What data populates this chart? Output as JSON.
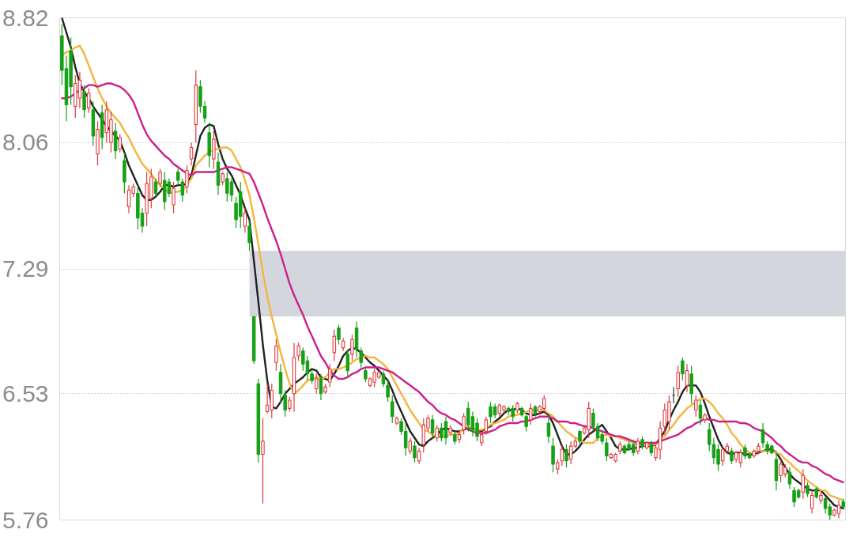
{
  "chart_data": {
    "type": "candlestick",
    "categories": [
      null,
      null,
      null,
      null,
      null,
      null,
      null,
      null,
      null,
      null,
      null,
      null,
      null,
      null,
      null,
      null,
      null,
      null,
      null,
      null,
      null,
      null,
      null,
      null,
      null,
      null,
      null,
      null,
      null,
      null,
      null,
      null,
      null,
      null,
      null,
      null,
      null,
      null,
      null,
      null,
      null,
      null,
      null,
      null,
      null,
      null,
      null,
      null,
      null,
      null,
      null,
      null,
      null,
      null,
      null,
      null,
      null,
      null,
      null,
      null,
      null,
      null,
      null,
      null,
      null,
      null,
      null,
      null,
      null,
      null,
      null,
      null,
      null,
      null,
      null,
      null,
      null,
      null,
      null,
      null,
      null,
      null,
      null,
      null,
      null,
      null,
      null,
      null,
      null,
      null,
      null,
      null,
      null,
      null,
      null,
      null,
      null,
      null,
      null,
      null,
      null,
      null,
      null,
      null,
      null,
      null,
      null,
      null,
      null,
      null,
      null,
      null,
      null,
      null,
      null,
      null,
      null,
      null,
      null,
      null,
      null,
      null,
      null,
      null,
      null,
      null,
      null,
      null,
      null,
      null,
      null,
      null,
      null,
      null,
      null,
      null,
      null,
      null,
      null,
      null,
      null,
      null,
      null,
      null,
      null,
      null,
      null,
      null,
      null,
      null,
      null,
      null,
      null,
      null,
      null,
      null,
      null,
      null,
      null,
      null,
      null,
      null,
      null,
      null,
      null,
      null,
      null,
      null,
      null,
      null,
      null,
      null,
      null,
      null,
      null,
      null
    ],
    "ohlc": [
      [
        8.71,
        8.78,
        8.41,
        8.5
      ],
      [
        8.51,
        8.59,
        8.19,
        8.29
      ],
      [
        8.62,
        8.7,
        8.29,
        8.4
      ],
      [
        8.28,
        8.47,
        8.21,
        8.42
      ],
      [
        8.33,
        8.49,
        8.27,
        8.44
      ],
      [
        8.37,
        8.41,
        8.21,
        8.26
      ],
      [
        8.27,
        8.39,
        8.24,
        8.36
      ],
      [
        8.26,
        8.31,
        8.04,
        8.1
      ],
      [
        7.99,
        8.19,
        7.92,
        8.14
      ],
      [
        8.24,
        8.29,
        8.02,
        8.09
      ],
      [
        8.12,
        8.31,
        8.06,
        8.26
      ],
      [
        8.06,
        8.25,
        8.0,
        8.2
      ],
      [
        8.13,
        8.18,
        7.96,
        8.01
      ],
      [
        8.02,
        8.11,
        8.0,
        8.09
      ],
      [
        7.95,
        8.0,
        7.75,
        7.82
      ],
      [
        7.67,
        7.8,
        7.63,
        7.77
      ],
      [
        7.75,
        7.81,
        7.73,
        7.79
      ],
      [
        7.75,
        7.8,
        7.53,
        7.6
      ],
      [
        7.63,
        7.66,
        7.51,
        7.55
      ],
      [
        7.63,
        7.88,
        7.55,
        7.81
      ],
      [
        7.72,
        7.9,
        7.66,
        7.85
      ],
      [
        7.82,
        7.84,
        7.73,
        7.75
      ],
      [
        7.81,
        7.9,
        7.79,
        7.88
      ],
      [
        7.83,
        7.88,
        7.65,
        7.7
      ],
      [
        7.82,
        7.84,
        7.73,
        7.75
      ],
      [
        7.68,
        7.82,
        7.63,
        7.78
      ],
      [
        7.88,
        7.9,
        7.8,
        7.83
      ],
      [
        7.82,
        7.84,
        7.7,
        7.74
      ],
      [
        7.79,
        7.92,
        7.75,
        7.89
      ],
      [
        7.96,
        8.06,
        7.92,
        8.03
      ],
      [
        8.17,
        8.5,
        8.06,
        8.41
      ],
      [
        8.4,
        8.44,
        8.24,
        8.28
      ],
      [
        8.28,
        8.31,
        8.18,
        8.21
      ],
      [
        8.12,
        8.18,
        7.91,
        7.98
      ],
      [
        7.96,
        8.13,
        7.9,
        8.08
      ],
      [
        7.94,
        8.0,
        7.74,
        7.8
      ],
      [
        7.82,
        7.88,
        7.8,
        7.87
      ],
      [
        7.84,
        7.88,
        7.7,
        7.75
      ],
      [
        7.82,
        7.84,
        7.7,
        7.74
      ],
      [
        7.69,
        7.73,
        7.54,
        7.59
      ],
      [
        7.76,
        7.82,
        7.54,
        7.61
      ],
      [
        7.55,
        7.66,
        7.51,
        7.63
      ],
      [
        7.55,
        7.59,
        7.4,
        7.45
      ],
      [
        7.0,
        7.0,
        6.71,
        6.73
      ],
      [
        6.59,
        6.62,
        6.11,
        6.16
      ],
      [
        6.16,
        6.38,
        5.86,
        6.24
      ],
      [
        6.42,
        6.59,
        6.41,
        6.46
      ],
      [
        6.43,
        6.59,
        6.38,
        6.55
      ],
      [
        6.72,
        6.86,
        6.67,
        6.82
      ],
      [
        6.66,
        6.71,
        6.47,
        6.53
      ],
      [
        6.52,
        6.55,
        6.39,
        6.43
      ],
      [
        6.44,
        6.51,
        6.42,
        6.49
      ],
      [
        6.53,
        6.84,
        6.42,
        6.75
      ],
      [
        6.76,
        6.84,
        6.73,
        6.82
      ],
      [
        6.79,
        6.81,
        6.67,
        6.71
      ],
      [
        6.73,
        6.76,
        6.61,
        6.65
      ],
      [
        6.65,
        6.67,
        6.59,
        6.61
      ],
      [
        6.56,
        6.65,
        6.53,
        6.62
      ],
      [
        6.62,
        6.65,
        6.49,
        6.53
      ],
      [
        6.54,
        6.59,
        6.53,
        6.57
      ],
      [
        6.6,
        6.71,
        6.57,
        6.68
      ],
      [
        6.78,
        6.92,
        6.73,
        6.88
      ],
      [
        6.93,
        6.95,
        6.83,
        6.86
      ],
      [
        6.81,
        6.87,
        6.79,
        6.85
      ],
      [
        6.77,
        6.8,
        6.63,
        6.67
      ],
      [
        6.77,
        6.89,
        6.73,
        6.86
      ],
      [
        6.93,
        6.97,
        6.75,
        6.8
      ],
      [
        6.79,
        6.81,
        6.69,
        6.72
      ],
      [
        6.67,
        6.69,
        6.6,
        6.62
      ],
      [
        6.58,
        6.63,
        6.57,
        6.62
      ],
      [
        6.6,
        6.68,
        6.57,
        6.66
      ],
      [
        6.63,
        6.67,
        6.62,
        6.66
      ],
      [
        6.65,
        6.67,
        6.57,
        6.59
      ],
      [
        6.58,
        6.61,
        6.48,
        6.51
      ],
      [
        6.48,
        6.52,
        6.35,
        6.39
      ],
      [
        6.35,
        6.39,
        6.34,
        6.38
      ],
      [
        6.36,
        6.38,
        6.28,
        6.3
      ],
      [
        6.3,
        6.35,
        6.15,
        6.2
      ],
      [
        6.18,
        6.26,
        6.16,
        6.24
      ],
      [
        6.21,
        6.24,
        6.11,
        6.14
      ],
      [
        6.12,
        6.2,
        6.1,
        6.18
      ],
      [
        6.22,
        6.38,
        6.17,
        6.34
      ],
      [
        6.32,
        6.4,
        6.3,
        6.38
      ],
      [
        6.37,
        6.4,
        6.26,
        6.29
      ],
      [
        6.26,
        6.34,
        6.24,
        6.32
      ],
      [
        6.32,
        6.35,
        6.24,
        6.26
      ],
      [
        6.36,
        6.39,
        6.22,
        6.26
      ],
      [
        6.29,
        6.34,
        6.28,
        6.32
      ],
      [
        6.28,
        6.3,
        6.22,
        6.24
      ],
      [
        6.25,
        6.3,
        6.23,
        6.28
      ],
      [
        6.31,
        6.41,
        6.28,
        6.39
      ],
      [
        6.44,
        6.48,
        6.3,
        6.34
      ],
      [
        6.39,
        6.42,
        6.27,
        6.3
      ],
      [
        6.35,
        6.38,
        6.24,
        6.27
      ],
      [
        6.23,
        6.3,
        6.21,
        6.28
      ],
      [
        6.3,
        6.39,
        6.28,
        6.37
      ],
      [
        6.45,
        6.48,
        6.35,
        6.39
      ],
      [
        6.45,
        6.47,
        6.38,
        6.4
      ],
      [
        6.41,
        6.47,
        6.39,
        6.46
      ],
      [
        6.43,
        6.46,
        6.41,
        6.45
      ],
      [
        6.44,
        6.45,
        6.4,
        6.42
      ],
      [
        6.44,
        6.46,
        6.36,
        6.39
      ],
      [
        6.43,
        6.48,
        6.41,
        6.47
      ],
      [
        6.44,
        6.45,
        6.39,
        6.4
      ],
      [
        6.39,
        6.41,
        6.3,
        6.33
      ],
      [
        6.37,
        6.47,
        6.34,
        6.44
      ],
      [
        6.45,
        6.46,
        6.39,
        6.41
      ],
      [
        6.42,
        6.46,
        6.4,
        6.45
      ],
      [
        6.44,
        6.52,
        6.42,
        6.5
      ],
      [
        6.35,
        6.39,
        6.23,
        6.27
      ],
      [
        6.21,
        6.26,
        6.05,
        6.1
      ],
      [
        6.07,
        6.13,
        6.04,
        6.11
      ],
      [
        6.12,
        6.22,
        6.09,
        6.19
      ],
      [
        6.19,
        6.22,
        6.08,
        6.12
      ],
      [
        6.13,
        6.24,
        6.1,
        6.21
      ],
      [
        6.21,
        6.26,
        6.2,
        6.24
      ],
      [
        6.3,
        6.31,
        6.22,
        6.24
      ],
      [
        6.29,
        6.34,
        6.28,
        6.32
      ],
      [
        6.31,
        6.48,
        6.26,
        6.44
      ],
      [
        6.41,
        6.44,
        6.3,
        6.33
      ],
      [
        6.33,
        6.35,
        6.24,
        6.26
      ],
      [
        6.28,
        6.3,
        6.22,
        6.24
      ],
      [
        6.23,
        6.26,
        6.12,
        6.15
      ],
      [
        6.14,
        6.17,
        6.13,
        6.16
      ],
      [
        6.12,
        6.17,
        6.11,
        6.16
      ],
      [
        6.18,
        6.24,
        6.16,
        6.22
      ],
      [
        6.21,
        6.22,
        6.16,
        6.17
      ],
      [
        6.22,
        6.24,
        6.18,
        6.19
      ],
      [
        6.22,
        6.24,
        6.15,
        6.17
      ],
      [
        6.18,
        6.26,
        6.16,
        6.24
      ],
      [
        6.25,
        6.27,
        6.19,
        6.21
      ],
      [
        6.2,
        6.24,
        6.19,
        6.23
      ],
      [
        6.22,
        6.24,
        6.15,
        6.17
      ],
      [
        6.14,
        6.22,
        6.12,
        6.2
      ],
      [
        6.19,
        6.36,
        6.13,
        6.32
      ],
      [
        6.33,
        6.47,
        6.28,
        6.43
      ],
      [
        6.36,
        6.52,
        6.31,
        6.48
      ],
      [
        6.52,
        6.57,
        6.47,
        6.52
      ],
      [
        6.56,
        6.7,
        6.51,
        6.66
      ],
      [
        6.73,
        6.75,
        6.61,
        6.65
      ],
      [
        6.58,
        6.71,
        6.54,
        6.67
      ],
      [
        6.65,
        6.7,
        6.47,
        6.53
      ],
      [
        6.43,
        6.52,
        6.39,
        6.49
      ],
      [
        6.46,
        6.49,
        6.34,
        6.38
      ],
      [
        6.37,
        6.41,
        6.35,
        6.4
      ],
      [
        6.31,
        6.35,
        6.18,
        6.22
      ],
      [
        6.22,
        6.26,
        6.1,
        6.14
      ],
      [
        6.19,
        6.22,
        6.06,
        6.1
      ],
      [
        6.12,
        6.21,
        6.09,
        6.19
      ],
      [
        6.18,
        6.23,
        6.16,
        6.21
      ],
      [
        6.18,
        6.2,
        6.1,
        6.12
      ],
      [
        6.13,
        6.18,
        6.11,
        6.17
      ],
      [
        6.11,
        6.19,
        6.08,
        6.17
      ],
      [
        6.2,
        6.22,
        6.13,
        6.15
      ],
      [
        6.16,
        6.17,
        6.13,
        6.14
      ],
      [
        6.15,
        6.19,
        6.14,
        6.18
      ],
      [
        6.18,
        6.23,
        6.16,
        6.21
      ],
      [
        6.31,
        6.35,
        6.2,
        6.23
      ],
      [
        6.22,
        6.24,
        6.16,
        6.18
      ],
      [
        6.21,
        6.22,
        6.16,
        6.17
      ],
      [
        6.13,
        6.18,
        5.94,
        6.0
      ],
      [
        6.03,
        6.13,
        5.99,
        6.1
      ],
      [
        6.04,
        6.1,
        6.02,
        6.08
      ],
      [
        6.05,
        6.08,
        5.95,
        5.98
      ],
      [
        5.94,
        5.96,
        5.84,
        5.87
      ],
      [
        5.94,
        5.95,
        5.89,
        5.9
      ],
      [
        5.93,
        6.07,
        5.89,
        6.03
      ],
      [
        5.97,
        5.99,
        5.9,
        5.92
      ],
      [
        5.83,
        5.94,
        5.8,
        5.91
      ],
      [
        5.95,
        5.96,
        5.89,
        5.9
      ],
      [
        5.88,
        5.93,
        5.86,
        5.91
      ],
      [
        5.89,
        5.9,
        5.8,
        5.83
      ],
      [
        5.84,
        5.86,
        5.76,
        5.79
      ],
      [
        5.79,
        5.83,
        5.78,
        5.82
      ],
      [
        5.8,
        5.88,
        5.77,
        5.85
      ],
      [
        5.87,
        5.89,
        5.83,
        5.84
      ]
    ],
    "colors": [
      "#16a016",
      "#16a016",
      "#16a016",
      "#e0393e",
      "#e0393e",
      "#16a016",
      "#e0393e",
      "#16a016",
      "#e0393e",
      "#16a016",
      "#e0393e",
      "#e0393e",
      "#16a016",
      "#e0393e",
      "#16a016",
      "#e0393e",
      "#e0393e",
      "#16a016",
      "#16a016",
      "#e0393e",
      "#e0393e",
      "#16a016",
      "#e0393e",
      "#16a016",
      "#16a016",
      "#e0393e",
      "#16a016",
      "#16a016",
      "#e0393e",
      "#e0393e",
      "#e0393e",
      "#16a016",
      "#16a016",
      "#16a016",
      "#e0393e",
      "#16a016",
      "#e0393e",
      "#16a016",
      "#16a016",
      "#16a016",
      "#16a016",
      "#e0393e",
      "#16a016",
      "#16a016",
      "#16a016",
      "#e0393e",
      "#e0393e",
      "#e0393e",
      "#e0393e",
      "#16a016",
      "#16a016",
      "#e0393e",
      "#e0393e",
      "#e0393e",
      "#16a016",
      "#16a016",
      "#16a016",
      "#e0393e",
      "#16a016",
      "#e0393e",
      "#e0393e",
      "#e0393e",
      "#16a016",
      "#e0393e",
      "#16a016",
      "#e0393e",
      "#16a016",
      "#16a016",
      "#16a016",
      "#e0393e",
      "#e0393e",
      "#e0393e",
      "#16a016",
      "#16a016",
      "#16a016",
      "#e0393e",
      "#16a016",
      "#16a016",
      "#e0393e",
      "#16a016",
      "#e0393e",
      "#e0393e",
      "#e0393e",
      "#16a016",
      "#e0393e",
      "#16a016",
      "#16a016",
      "#e0393e",
      "#16a016",
      "#e0393e",
      "#e0393e",
      "#16a016",
      "#16a016",
      "#16a016",
      "#e0393e",
      "#e0393e",
      "#16a016",
      "#16a016",
      "#e0393e",
      "#e0393e",
      "#16a016",
      "#16a016",
      "#e0393e",
      "#16a016",
      "#16a016",
      "#e0393e",
      "#16a016",
      "#e0393e",
      "#e0393e",
      "#16a016",
      "#16a016",
      "#e0393e",
      "#e0393e",
      "#16a016",
      "#e0393e",
      "#e0393e",
      "#16a016",
      "#e0393e",
      "#e0393e",
      "#16a016",
      "#16a016",
      "#16a016",
      "#16a016",
      "#e0393e",
      "#e0393e",
      "#e0393e",
      "#16a016",
      "#16a016",
      "#16a016",
      "#e0393e",
      "#16a016",
      "#e0393e",
      "#16a016",
      "#e0393e",
      "#e0393e",
      "#e0393e",
      "#e0393e",
      "#333333",
      "#e0393e",
      "#16a016",
      "#e0393e",
      "#16a016",
      "#e0393e",
      "#16a016",
      "#e0393e",
      "#16a016",
      "#16a016",
      "#16a016",
      "#e0393e",
      "#e0393e",
      "#16a016",
      "#e0393e",
      "#e0393e",
      "#16a016",
      "#16a016",
      "#e0393e",
      "#e0393e",
      "#16a016",
      "#16a016",
      "#16a016",
      "#16a016",
      "#e0393e",
      "#e0393e",
      "#16a016",
      "#16a016",
      "#16a016",
      "#e0393e",
      "#16a016",
      "#e0393e",
      "#16a016",
      "#e0393e",
      "#16a016",
      "#16a016",
      "#e0393e",
      "#e0393e",
      "#16a016"
    ],
    "ylim": [
      5.76,
      8.82
    ],
    "yticks": [
      8.82,
      8.06,
      7.29,
      6.53,
      5.76
    ],
    "grid": "y",
    "tick_labels": "y",
    "bands": [
      {
        "axis": "y",
        "from": 7.0,
        "to": 7.4,
        "color": "#d3d7dd"
      }
    ],
    "series": [
      {
        "type": "line",
        "color": "#222222",
        "values": [
          8.82,
          8.73,
          8.64,
          8.52,
          8.42,
          8.37,
          8.33,
          8.28,
          8.24,
          8.2,
          8.16,
          8.13,
          8.1,
          8.07,
          8.0,
          7.92,
          7.86,
          7.8,
          7.74,
          7.71,
          7.71,
          7.73,
          7.76,
          7.8,
          7.8,
          7.79,
          7.8,
          7.8,
          7.81,
          7.86,
          7.98,
          8.1,
          8.15,
          8.17,
          8.16,
          8.05,
          7.96,
          7.9,
          7.86,
          7.8,
          7.74,
          7.66,
          7.59,
          7.34,
          7.09,
          6.83,
          6.61,
          6.45,
          6.44,
          6.48,
          6.53,
          6.56,
          6.59,
          6.61,
          6.63,
          6.66,
          6.68,
          6.67,
          6.63,
          6.62,
          6.61,
          6.65,
          6.7,
          6.76,
          6.79,
          6.81,
          6.8,
          6.78,
          6.75,
          6.72,
          6.7,
          6.67,
          6.64,
          6.61,
          6.55,
          6.48,
          6.42,
          6.36,
          6.3,
          6.26,
          6.22,
          6.21,
          6.24,
          6.26,
          6.28,
          6.31,
          6.32,
          6.31,
          6.3,
          6.3,
          6.31,
          6.32,
          6.32,
          6.31,
          6.3,
          6.32,
          6.33,
          6.36,
          6.38,
          6.41,
          6.43,
          6.43,
          6.44,
          6.43,
          6.41,
          6.4,
          6.4,
          6.41,
          6.42,
          6.4,
          6.35,
          6.28,
          6.21,
          6.16,
          6.16,
          6.18,
          6.21,
          6.25,
          6.28,
          6.3,
          6.32,
          6.34,
          6.3,
          6.26,
          6.21,
          6.19,
          6.19,
          6.19,
          6.2,
          6.2,
          6.21,
          6.21,
          6.21,
          6.22,
          6.26,
          6.3,
          6.37,
          6.43,
          6.48,
          6.54,
          6.58,
          6.58,
          6.58,
          6.54,
          6.47,
          6.39,
          6.32,
          6.25,
          6.2,
          6.17,
          6.16,
          6.17,
          6.17,
          6.16,
          6.16,
          6.16,
          6.17,
          6.18,
          6.19,
          6.19,
          6.17,
          6.13,
          6.08,
          6.04,
          6.01,
          5.99,
          5.97,
          5.95,
          5.94,
          5.94,
          5.94,
          5.91,
          5.88,
          5.85,
          5.84,
          5.83
        ]
      },
      {
        "type": "line",
        "color": "#f5b53d",
        "values": [
          8.59,
          8.61,
          8.62,
          8.64,
          8.65,
          8.6,
          8.53,
          8.46,
          8.39,
          8.33,
          8.28,
          8.24,
          8.21,
          8.18,
          8.13,
          8.09,
          8.03,
          7.98,
          7.93,
          7.9,
          7.87,
          7.83,
          7.8,
          7.78,
          7.75,
          7.76,
          7.76,
          7.77,
          7.8,
          7.84,
          7.92,
          7.95,
          7.98,
          8.0,
          8.02,
          8.02,
          8.03,
          8.03,
          8.01,
          7.96,
          7.91,
          7.83,
          7.74,
          7.6,
          7.44,
          7.27,
          7.12,
          7.0,
          6.89,
          6.78,
          6.68,
          6.59,
          6.53,
          6.55,
          6.58,
          6.61,
          6.62,
          6.63,
          6.62,
          6.63,
          6.66,
          6.68,
          6.68,
          6.69,
          6.7,
          6.72,
          6.74,
          6.75,
          6.76,
          6.75,
          6.75,
          6.73,
          6.71,
          6.68,
          6.63,
          6.58,
          6.53,
          6.48,
          6.43,
          6.39,
          6.35,
          6.31,
          6.3,
          6.28,
          6.27,
          6.27,
          6.27,
          6.28,
          6.28,
          6.29,
          6.32,
          6.33,
          6.32,
          6.31,
          6.31,
          6.32,
          6.34,
          6.35,
          6.36,
          6.37,
          6.39,
          6.4,
          6.4,
          6.41,
          6.42,
          6.43,
          6.43,
          6.43,
          6.43,
          6.41,
          6.39,
          6.36,
          6.33,
          6.3,
          6.28,
          6.26,
          6.25,
          6.23,
          6.23,
          6.23,
          6.26,
          6.27,
          6.28,
          6.27,
          6.27,
          6.26,
          6.25,
          6.24,
          6.23,
          6.22,
          6.22,
          6.21,
          6.22,
          6.22,
          6.25,
          6.27,
          6.31,
          6.34,
          6.38,
          6.41,
          6.44,
          6.46,
          6.48,
          6.5,
          6.5,
          6.48,
          6.45,
          6.41,
          6.38,
          6.34,
          6.29,
          6.26,
          6.22,
          6.19,
          6.17,
          6.17,
          6.18,
          6.18,
          6.18,
          6.18,
          6.17,
          6.16,
          6.13,
          6.11,
          6.08,
          6.06,
          6.03,
          6.0,
          5.98,
          5.96,
          5.94,
          5.94,
          5.91,
          5.9,
          5.89,
          5.88
        ]
      },
      {
        "type": "line",
        "color": "#cc1f8a",
        "values": [
          8.33,
          8.33,
          8.34,
          8.36,
          8.38,
          8.39,
          8.41,
          8.41,
          8.4,
          8.41,
          8.42,
          8.42,
          8.41,
          8.4,
          8.38,
          8.35,
          8.31,
          8.24,
          8.17,
          8.11,
          8.07,
          8.04,
          8.01,
          7.98,
          7.96,
          7.93,
          7.91,
          7.89,
          7.87,
          7.86,
          7.88,
          7.88,
          7.88,
          7.88,
          7.88,
          7.89,
          7.9,
          7.91,
          7.91,
          7.9,
          7.89,
          7.88,
          7.87,
          7.82,
          7.75,
          7.68,
          7.6,
          7.53,
          7.46,
          7.38,
          7.29,
          7.2,
          7.13,
          7.07,
          7.01,
          6.94,
          6.88,
          6.82,
          6.76,
          6.72,
          6.67,
          6.64,
          6.62,
          6.62,
          6.63,
          6.65,
          6.66,
          6.68,
          6.69,
          6.69,
          6.69,
          6.69,
          6.68,
          6.67,
          6.66,
          6.64,
          6.62,
          6.6,
          6.58,
          6.56,
          6.54,
          6.51,
          6.48,
          6.46,
          6.43,
          6.41,
          6.4,
          6.38,
          6.37,
          6.35,
          6.33,
          6.31,
          6.3,
          6.29,
          6.29,
          6.29,
          6.3,
          6.31,
          6.33,
          6.34,
          6.35,
          6.35,
          6.35,
          6.36,
          6.36,
          6.37,
          6.38,
          6.39,
          6.39,
          6.39,
          6.38,
          6.36,
          6.36,
          6.36,
          6.35,
          6.35,
          6.34,
          6.33,
          6.33,
          6.32,
          6.31,
          6.3,
          6.29,
          6.28,
          6.27,
          6.27,
          6.26,
          6.25,
          6.24,
          6.23,
          6.23,
          6.23,
          6.23,
          6.23,
          6.24,
          6.25,
          6.26,
          6.27,
          6.28,
          6.3,
          6.32,
          6.33,
          6.35,
          6.36,
          6.38,
          6.37,
          6.37,
          6.36,
          6.36,
          6.36,
          6.36,
          6.36,
          6.35,
          6.35,
          6.34,
          6.32,
          6.31,
          6.3,
          6.28,
          6.26,
          6.23,
          6.21,
          6.18,
          6.16,
          6.14,
          6.12,
          6.11,
          6.11,
          6.09,
          6.08,
          6.06,
          6.04,
          6.03,
          6.01,
          6.0,
          5.99
        ]
      }
    ]
  }
}
